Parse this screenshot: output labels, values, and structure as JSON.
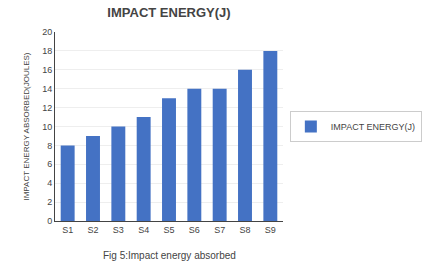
{
  "chart_data": {
    "type": "bar",
    "title": "IMPACT ENERGY(J)",
    "ylabel": "IMPACT ENERGY ABSORBED(JOULES)",
    "caption": "Fig 5:Impact energy absorbed",
    "categories": [
      "S1",
      "S2",
      "S3",
      "S4",
      "S5",
      "S6",
      "S7",
      "S8",
      "S9"
    ],
    "series": [
      {
        "name": "IMPACT ENERGY(J)",
        "color": "#4472C4",
        "values": [
          8,
          9,
          10,
          11,
          13,
          14,
          14,
          16,
          18
        ]
      }
    ],
    "ylim": [
      0,
      20
    ],
    "yticks": [
      0,
      2,
      4,
      6,
      8,
      10,
      12,
      14,
      16,
      18,
      20
    ],
    "grid": true,
    "legend": "right"
  }
}
